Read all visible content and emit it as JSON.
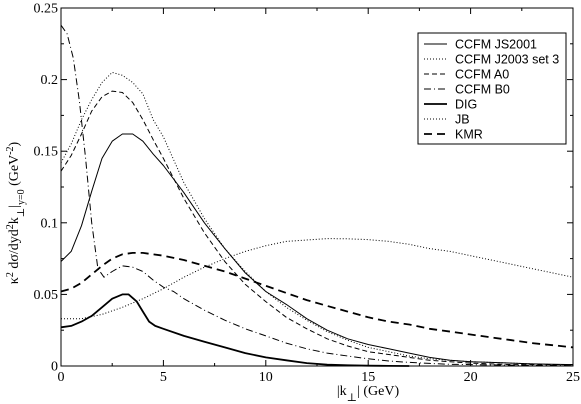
{
  "chart_data": {
    "type": "line",
    "xlabel": "|k ⊥| (GeV)",
    "ylabel": "κ² dσ/dyd²k⊥|y=0 (GeV⁻²)",
    "xlim": [
      0,
      25
    ],
    "ylim": [
      0,
      0.25
    ],
    "x_ticks": [
      0,
      5,
      10,
      15,
      20,
      25
    ],
    "y_ticks": [
      0,
      0.05,
      0.1,
      0.15,
      0.2,
      0.25
    ],
    "x_tick_labels": [
      "0",
      "5",
      "10",
      "15",
      "20",
      "25"
    ],
    "y_tick_labels": [
      "0",
      "0.05",
      "0.1",
      "0.15",
      "0.2",
      "0.25"
    ],
    "legend_position": "top-right",
    "grid": false,
    "series": [
      {
        "name": "CCFM JS2001",
        "style": "solid-thin",
        "points": [
          [
            0,
            0.073
          ],
          [
            0.5,
            0.08
          ],
          [
            1,
            0.098
          ],
          [
            1.5,
            0.122
          ],
          [
            2,
            0.145
          ],
          [
            2.5,
            0.157
          ],
          [
            3,
            0.162
          ],
          [
            3.5,
            0.162
          ],
          [
            4,
            0.157
          ],
          [
            4.5,
            0.148
          ],
          [
            5,
            0.14
          ],
          [
            6,
            0.121
          ],
          [
            7,
            0.1
          ],
          [
            8,
            0.082
          ],
          [
            9,
            0.065
          ],
          [
            10,
            0.052
          ],
          [
            11,
            0.043
          ],
          [
            12,
            0.033
          ],
          [
            13,
            0.025
          ],
          [
            14,
            0.019
          ],
          [
            15,
            0.015
          ],
          [
            16,
            0.012
          ],
          [
            17,
            0.009
          ],
          [
            18,
            0.006
          ],
          [
            19,
            0.004
          ],
          [
            20,
            0.003
          ],
          [
            21,
            0.0025
          ],
          [
            22,
            0.002
          ],
          [
            23,
            0.0015
          ],
          [
            24,
            0.0012
          ],
          [
            25,
            0.001
          ]
        ]
      },
      {
        "name": "CCFM J2003 set 3",
        "style": "dotted",
        "points": [
          [
            0,
            0.142
          ],
          [
            0.5,
            0.155
          ],
          [
            1,
            0.172
          ],
          [
            1.5,
            0.186
          ],
          [
            2,
            0.198
          ],
          [
            2.5,
            0.205
          ],
          [
            3,
            0.203
          ],
          [
            3.5,
            0.198
          ],
          [
            4,
            0.19
          ],
          [
            4.5,
            0.172
          ],
          [
            5,
            0.16
          ],
          [
            6,
            0.128
          ],
          [
            7,
            0.103
          ],
          [
            8,
            0.082
          ],
          [
            9,
            0.066
          ],
          [
            10,
            0.052
          ],
          [
            11,
            0.041
          ],
          [
            12,
            0.032
          ],
          [
            13,
            0.024
          ],
          [
            14,
            0.018
          ],
          [
            15,
            0.013
          ],
          [
            16,
            0.01
          ],
          [
            17,
            0.007
          ],
          [
            18,
            0.005
          ],
          [
            19,
            0.004
          ],
          [
            20,
            0.003
          ],
          [
            21,
            0.0025
          ],
          [
            22,
            0.002
          ],
          [
            23,
            0.0015
          ],
          [
            24,
            0.001
          ],
          [
            25,
            0.001
          ]
        ]
      },
      {
        "name": "CCFM A0",
        "style": "dashed",
        "points": [
          [
            0,
            0.136
          ],
          [
            0.5,
            0.147
          ],
          [
            1,
            0.162
          ],
          [
            1.5,
            0.178
          ],
          [
            2,
            0.188
          ],
          [
            2.5,
            0.192
          ],
          [
            3,
            0.191
          ],
          [
            3.5,
            0.184
          ],
          [
            4,
            0.172
          ],
          [
            4.5,
            0.158
          ],
          [
            5,
            0.145
          ],
          [
            6,
            0.117
          ],
          [
            7,
            0.093
          ],
          [
            8,
            0.073
          ],
          [
            9,
            0.057
          ],
          [
            10,
            0.045
          ],
          [
            11,
            0.034
          ],
          [
            12,
            0.026
          ],
          [
            13,
            0.019
          ],
          [
            14,
            0.014
          ],
          [
            15,
            0.01
          ],
          [
            16,
            0.008
          ],
          [
            17,
            0.006
          ],
          [
            18,
            0.004
          ],
          [
            19,
            0.003
          ],
          [
            20,
            0.002
          ],
          [
            21,
            0.0015
          ],
          [
            22,
            0.001
          ],
          [
            23,
            0.001
          ],
          [
            24,
            0.001
          ],
          [
            25,
            0.001
          ]
        ]
      },
      {
        "name": "CCFM B0",
        "style": "dash-dot",
        "points": [
          [
            0,
            0.238
          ],
          [
            0.3,
            0.232
          ],
          [
            0.6,
            0.215
          ],
          [
            0.9,
            0.185
          ],
          [
            1.2,
            0.145
          ],
          [
            1.5,
            0.1
          ],
          [
            1.8,
            0.068
          ],
          [
            2.1,
            0.062
          ],
          [
            2.5,
            0.066
          ],
          [
            3,
            0.07
          ],
          [
            3.5,
            0.069
          ],
          [
            4,
            0.066
          ],
          [
            4.5,
            0.06
          ],
          [
            5,
            0.055
          ],
          [
            5.5,
            0.052
          ],
          [
            6,
            0.047
          ],
          [
            7,
            0.039
          ],
          [
            8,
            0.032
          ],
          [
            9,
            0.026
          ],
          [
            10,
            0.021
          ],
          [
            11,
            0.016
          ],
          [
            12,
            0.012
          ],
          [
            13,
            0.009
          ],
          [
            14,
            0.007
          ],
          [
            15,
            0.005
          ],
          [
            16,
            0.0035
          ],
          [
            17,
            0.0025
          ],
          [
            18,
            0.0018
          ],
          [
            19,
            0.0012
          ],
          [
            20,
            0.001
          ],
          [
            21,
            0.0008
          ],
          [
            22,
            0.0006
          ],
          [
            23,
            0.0005
          ],
          [
            24,
            0.0004
          ],
          [
            25,
            0.0003
          ]
        ]
      },
      {
        "name": "DIG",
        "style": "solid-thick",
        "points": [
          [
            0,
            0.027
          ],
          [
            0.5,
            0.028
          ],
          [
            1,
            0.031
          ],
          [
            1.5,
            0.035
          ],
          [
            2,
            0.041
          ],
          [
            2.5,
            0.047
          ],
          [
            3,
            0.05
          ],
          [
            3.3,
            0.05
          ],
          [
            3.7,
            0.045
          ],
          [
            4,
            0.038
          ],
          [
            4.3,
            0.031
          ],
          [
            4.6,
            0.028
          ],
          [
            5,
            0.026
          ],
          [
            6,
            0.021
          ],
          [
            7,
            0.017
          ],
          [
            8,
            0.013
          ],
          [
            9,
            0.009
          ],
          [
            10,
            0.006
          ],
          [
            11,
            0.004
          ],
          [
            12,
            0.002
          ],
          [
            13,
            0.001
          ],
          [
            14,
            0.0005
          ],
          [
            15,
            0.0002
          ],
          [
            16,
            0.0001
          ],
          [
            17,
            0
          ]
        ]
      },
      {
        "name": "JB",
        "style": "dotted",
        "points": [
          [
            0,
            0.033
          ],
          [
            1,
            0.033
          ],
          [
            2,
            0.036
          ],
          [
            3,
            0.041
          ],
          [
            4,
            0.047
          ],
          [
            5,
            0.054
          ],
          [
            6,
            0.062
          ],
          [
            7,
            0.069
          ],
          [
            8,
            0.075
          ],
          [
            9,
            0.08
          ],
          [
            10,
            0.084
          ],
          [
            11,
            0.087
          ],
          [
            12,
            0.088
          ],
          [
            13,
            0.089
          ],
          [
            14,
            0.0888
          ],
          [
            15,
            0.0883
          ],
          [
            16,
            0.087
          ],
          [
            17,
            0.085
          ],
          [
            18,
            0.082
          ],
          [
            19,
            0.08
          ],
          [
            20,
            0.077
          ],
          [
            21,
            0.074
          ],
          [
            22,
            0.071
          ],
          [
            23,
            0.068
          ],
          [
            24,
            0.065
          ],
          [
            25,
            0.062
          ]
        ]
      },
      {
        "name": "KMR",
        "style": "dashed-thick",
        "points": [
          [
            0,
            0.052
          ],
          [
            0.5,
            0.054
          ],
          [
            1,
            0.058
          ],
          [
            1.5,
            0.064
          ],
          [
            2,
            0.07
          ],
          [
            2.5,
            0.075
          ],
          [
            3,
            0.078
          ],
          [
            3.5,
            0.079
          ],
          [
            4,
            0.079
          ],
          [
            5,
            0.077
          ],
          [
            6,
            0.074
          ],
          [
            7,
            0.07
          ],
          [
            8,
            0.066
          ],
          [
            9,
            0.061
          ],
          [
            10,
            0.056
          ],
          [
            11,
            0.051
          ],
          [
            12,
            0.046
          ],
          [
            13,
            0.042
          ],
          [
            14,
            0.038
          ],
          [
            15,
            0.034
          ],
          [
            16,
            0.031
          ],
          [
            17,
            0.029
          ],
          [
            18,
            0.026
          ],
          [
            19,
            0.024
          ],
          [
            20,
            0.022
          ],
          [
            21,
            0.02
          ],
          [
            22,
            0.018
          ],
          [
            23,
            0.016
          ],
          [
            24,
            0.0145
          ],
          [
            25,
            0.013
          ]
        ]
      }
    ]
  }
}
